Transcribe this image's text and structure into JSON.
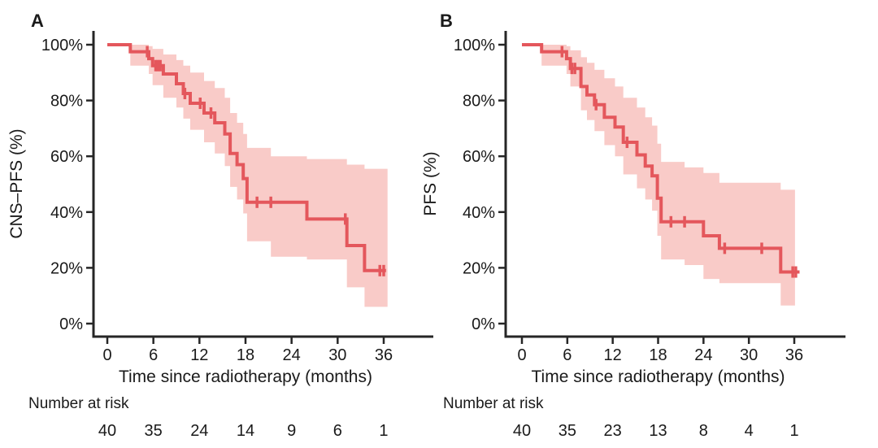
{
  "figure": {
    "colors": {
      "curve": "#e4575c",
      "band": "#f9cbc8",
      "axis": "#262626",
      "text": "#1a1a1a",
      "background": "#ffffff"
    }
  },
  "chart_data": [
    {
      "type": "line",
      "subtype": "kaplan-meier-step",
      "panel_label": "A",
      "title": "",
      "xlabel": "Time since radiotherapy (months)",
      "ylabel": "CNS–PFS (%)",
      "xlim": [
        0,
        42
      ],
      "ylim": [
        0,
        100
      ],
      "grid": false,
      "legend": "none",
      "xticks": [
        0,
        6,
        12,
        18,
        24,
        30,
        36
      ],
      "xtick_labels": [
        "0",
        "6",
        "12",
        "18",
        "24",
        "30",
        "36"
      ],
      "yticks": [
        0,
        20,
        40,
        60,
        80,
        100
      ],
      "ytick_labels": [
        "0%",
        "20%",
        "40%",
        "60%",
        "80%",
        "100%"
      ],
      "series": [
        {
          "name": "CNS-PFS",
          "steps": [
            [
              0,
              100
            ],
            [
              3.0,
              97.5
            ],
            [
              5.4,
              95
            ],
            [
              5.9,
              92.5
            ],
            [
              7.3,
              89.5
            ],
            [
              9.0,
              86
            ],
            [
              9.9,
              82.5
            ],
            [
              10.8,
              79
            ],
            [
              12.6,
              75.5
            ],
            [
              14.0,
              72
            ],
            [
              15.3,
              68
            ],
            [
              16.0,
              61
            ],
            [
              16.9,
              57
            ],
            [
              17.7,
              52
            ],
            [
              18.2,
              43.5
            ],
            [
              26.0,
              37.5
            ],
            [
              31.2,
              28
            ],
            [
              33.5,
              19
            ]
          ],
          "end_time": 36.3,
          "censor_marks": [
            [
              5.2,
              97.5
            ],
            [
              6.3,
              92.5
            ],
            [
              6.6,
              92.5
            ],
            [
              6.9,
              92.5
            ],
            [
              10.1,
              82.5
            ],
            [
              12.1,
              79
            ],
            [
              13.5,
              75.5
            ],
            [
              19.5,
              43.5
            ],
            [
              21.3,
              43.5
            ],
            [
              31.0,
              37.5
            ],
            [
              35.5,
              19
            ],
            [
              36.0,
              19
            ]
          ],
          "ci_band": [
            [
              3.0,
              100,
              92.5
            ],
            [
              5.4,
              99.5,
              89.5
            ],
            [
              5.9,
              98.5,
              85.5
            ],
            [
              7.3,
              96.5,
              81
            ],
            [
              9.0,
              94.5,
              77.5
            ],
            [
              9.9,
              92.5,
              73.5
            ],
            [
              10.8,
              90,
              69.5
            ],
            [
              12.6,
              87,
              65
            ],
            [
              14.0,
              84.5,
              61
            ],
            [
              15.3,
              81,
              56.5
            ],
            [
              16.0,
              75.5,
              49
            ],
            [
              16.9,
              72,
              44.5
            ],
            [
              17.7,
              68,
              39.5
            ],
            [
              18.2,
              63,
              29.5
            ],
            [
              21.3,
              60,
              24
            ],
            [
              26.0,
              59,
              23
            ],
            [
              31.2,
              57,
              13
            ],
            [
              33.5,
              55.5,
              6
            ]
          ],
          "ci_end_time": 36.5
        }
      ],
      "risk_table": {
        "header": "Number at risk",
        "times": [
          0,
          6,
          12,
          18,
          24,
          30,
          36
        ],
        "counts": [
          "40",
          "35",
          "24",
          "14",
          "9",
          "6",
          "1"
        ]
      }
    },
    {
      "type": "line",
      "subtype": "kaplan-meier-step",
      "panel_label": "B",
      "title": "",
      "xlabel": "Time since radiotherapy (months)",
      "ylabel": "PFS (%)",
      "xlim": [
        0,
        42
      ],
      "ylim": [
        0,
        100
      ],
      "grid": false,
      "legend": "none",
      "xticks": [
        0,
        6,
        12,
        18,
        24,
        30,
        36
      ],
      "xtick_labels": [
        "0",
        "6",
        "12",
        "18",
        "24",
        "30",
        "36"
      ],
      "yticks": [
        0,
        20,
        40,
        60,
        80,
        100
      ],
      "ytick_labels": [
        "0%",
        "20%",
        "40%",
        "60%",
        "80%",
        "100%"
      ],
      "series": [
        {
          "name": "PFS",
          "steps": [
            [
              0,
              100
            ],
            [
              2.6,
              97.5
            ],
            [
              5.9,
              95
            ],
            [
              6.4,
              91.5
            ],
            [
              7.8,
              85
            ],
            [
              8.6,
              82
            ],
            [
              9.6,
              78.5
            ],
            [
              10.9,
              74
            ],
            [
              12.3,
              70.5
            ],
            [
              13.4,
              65
            ],
            [
              15.2,
              60.5
            ],
            [
              16.3,
              56.5
            ],
            [
              17.2,
              53
            ],
            [
              17.9,
              45
            ],
            [
              18.4,
              36.5
            ],
            [
              24.0,
              31.5
            ],
            [
              26.1,
              27
            ],
            [
              34.2,
              18.5
            ]
          ],
          "end_time": 36.7,
          "censor_marks": [
            [
              5.3,
              97.5
            ],
            [
              6.6,
              91.5
            ],
            [
              7.0,
              91.5
            ],
            [
              9.8,
              78.5
            ],
            [
              13.9,
              65
            ],
            [
              19.7,
              36.5
            ],
            [
              21.5,
              36.5
            ],
            [
              26.8,
              27
            ],
            [
              31.7,
              27
            ],
            [
              35.8,
              18.5
            ],
            [
              36.2,
              18.5
            ]
          ],
          "ci_band": [
            [
              2.6,
              100,
              92.5
            ],
            [
              5.9,
              99.5,
              89.5
            ],
            [
              6.4,
              98,
              85
            ],
            [
              7.8,
              95.5,
              76.5
            ],
            [
              8.6,
              93.5,
              73
            ],
            [
              9.6,
              91,
              69
            ],
            [
              10.9,
              88,
              64
            ],
            [
              12.3,
              85,
              60
            ],
            [
              13.4,
              81,
              53.5
            ],
            [
              15.2,
              77.5,
              48.5
            ],
            [
              16.3,
              74,
              44.5
            ],
            [
              17.2,
              71,
              40.5
            ],
            [
              17.9,
              64.5,
              31.5
            ],
            [
              18.4,
              58,
              23
            ],
            [
              21.5,
              56,
              21
            ],
            [
              24.0,
              54,
              16
            ],
            [
              26.1,
              50.5,
              14.5
            ],
            [
              34.2,
              48,
              6.5
            ]
          ],
          "ci_end_time": 36.1
        }
      ],
      "risk_table": {
        "header": "Number at risk",
        "times": [
          0,
          6,
          12,
          18,
          24,
          30,
          36
        ],
        "counts": [
          "40",
          "35",
          "23",
          "13",
          "8",
          "4",
          "1"
        ]
      }
    }
  ]
}
